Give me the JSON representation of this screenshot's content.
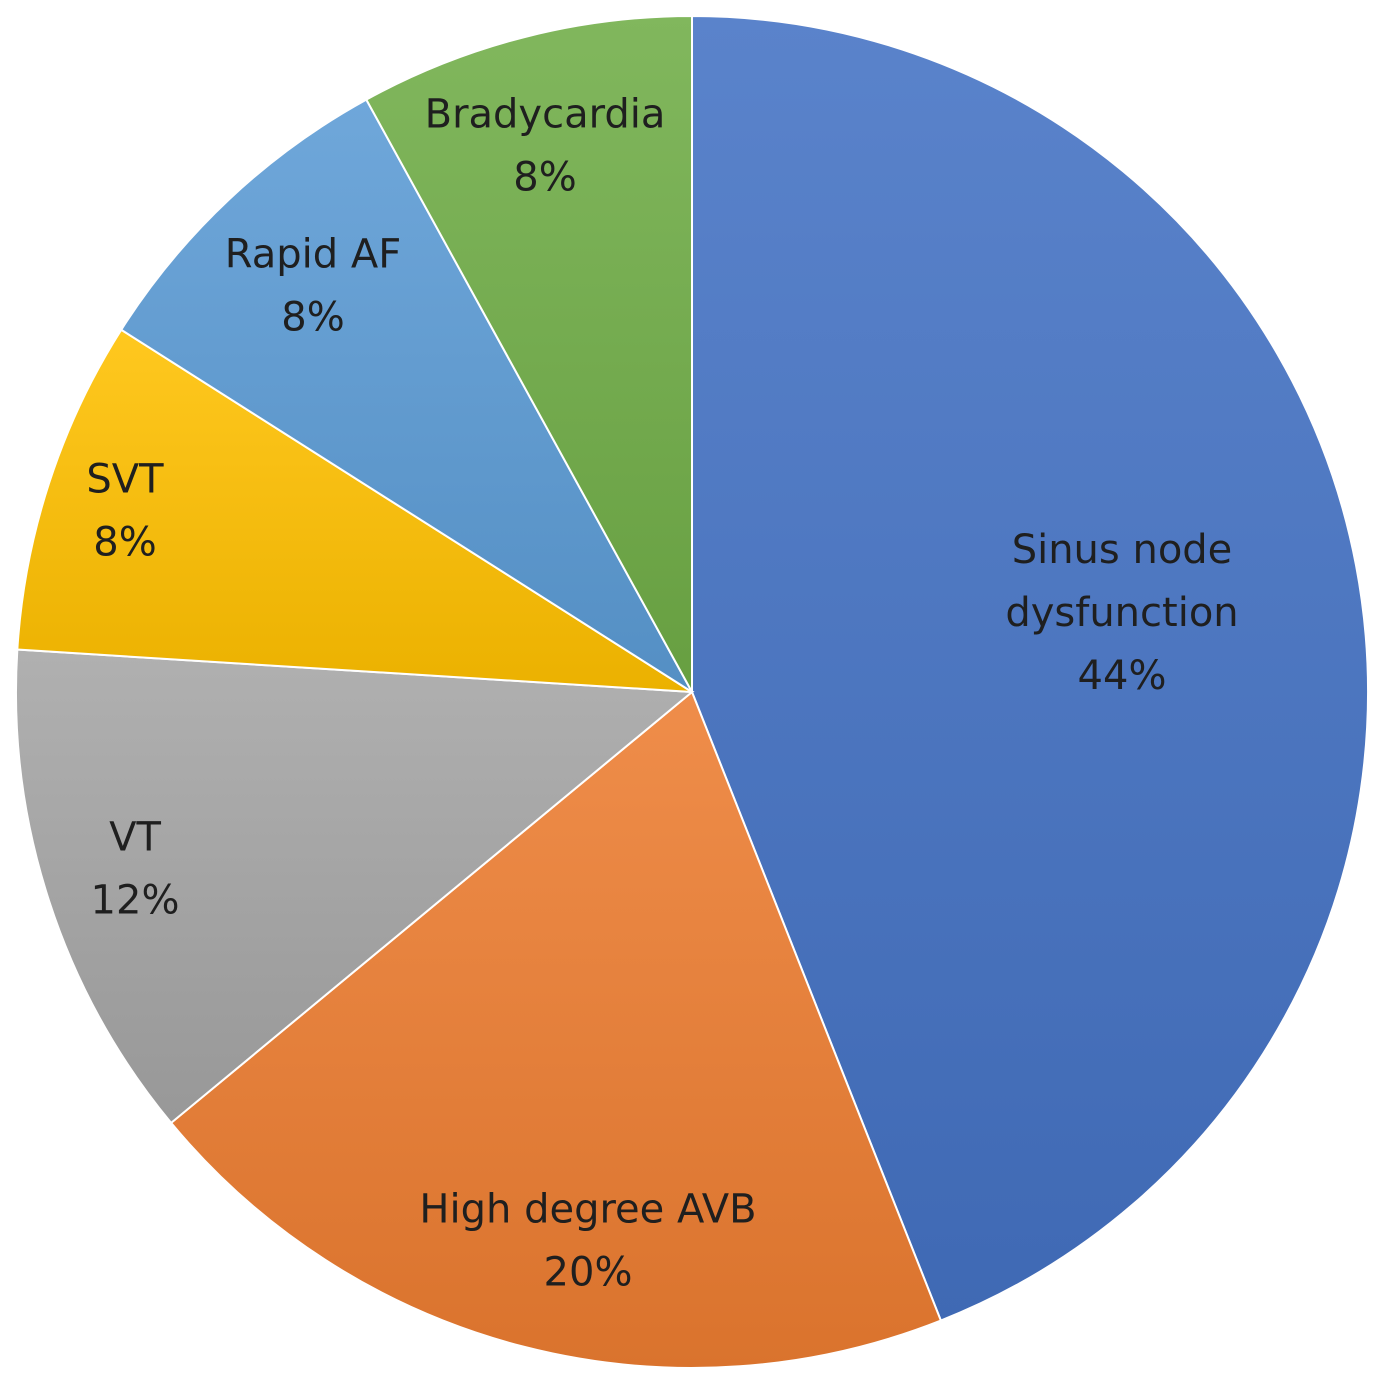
{
  "chart_data": {
    "type": "pie",
    "title": "",
    "start_angle_deg": 0,
    "direction": "clockwise",
    "slices": [
      {
        "label_lines": [
          "Sinus node",
          "dysfunction"
        ],
        "value": 44,
        "value_label": "44%",
        "color": "#4472c4"
      },
      {
        "label_lines": [
          "High degree AVB"
        ],
        "value": 20,
        "value_label": "20%",
        "color": "#ed7d31"
      },
      {
        "label_lines": [
          "VT"
        ],
        "value": 12,
        "value_label": "12%",
        "color": "#a5a5a5"
      },
      {
        "label_lines": [
          "SVT"
        ],
        "value": 8,
        "value_label": "8%",
        "color": "#ffc000"
      },
      {
        "label_lines": [
          "Rapid AF"
        ],
        "value": 8,
        "value_label": "8%",
        "color": "#5b9bd5"
      },
      {
        "label_lines": [
          "Bradycardia"
        ],
        "value": 8,
        "value_label": "8%",
        "color": "#70ad47"
      }
    ],
    "legend": "none",
    "data_labels": "inside"
  }
}
